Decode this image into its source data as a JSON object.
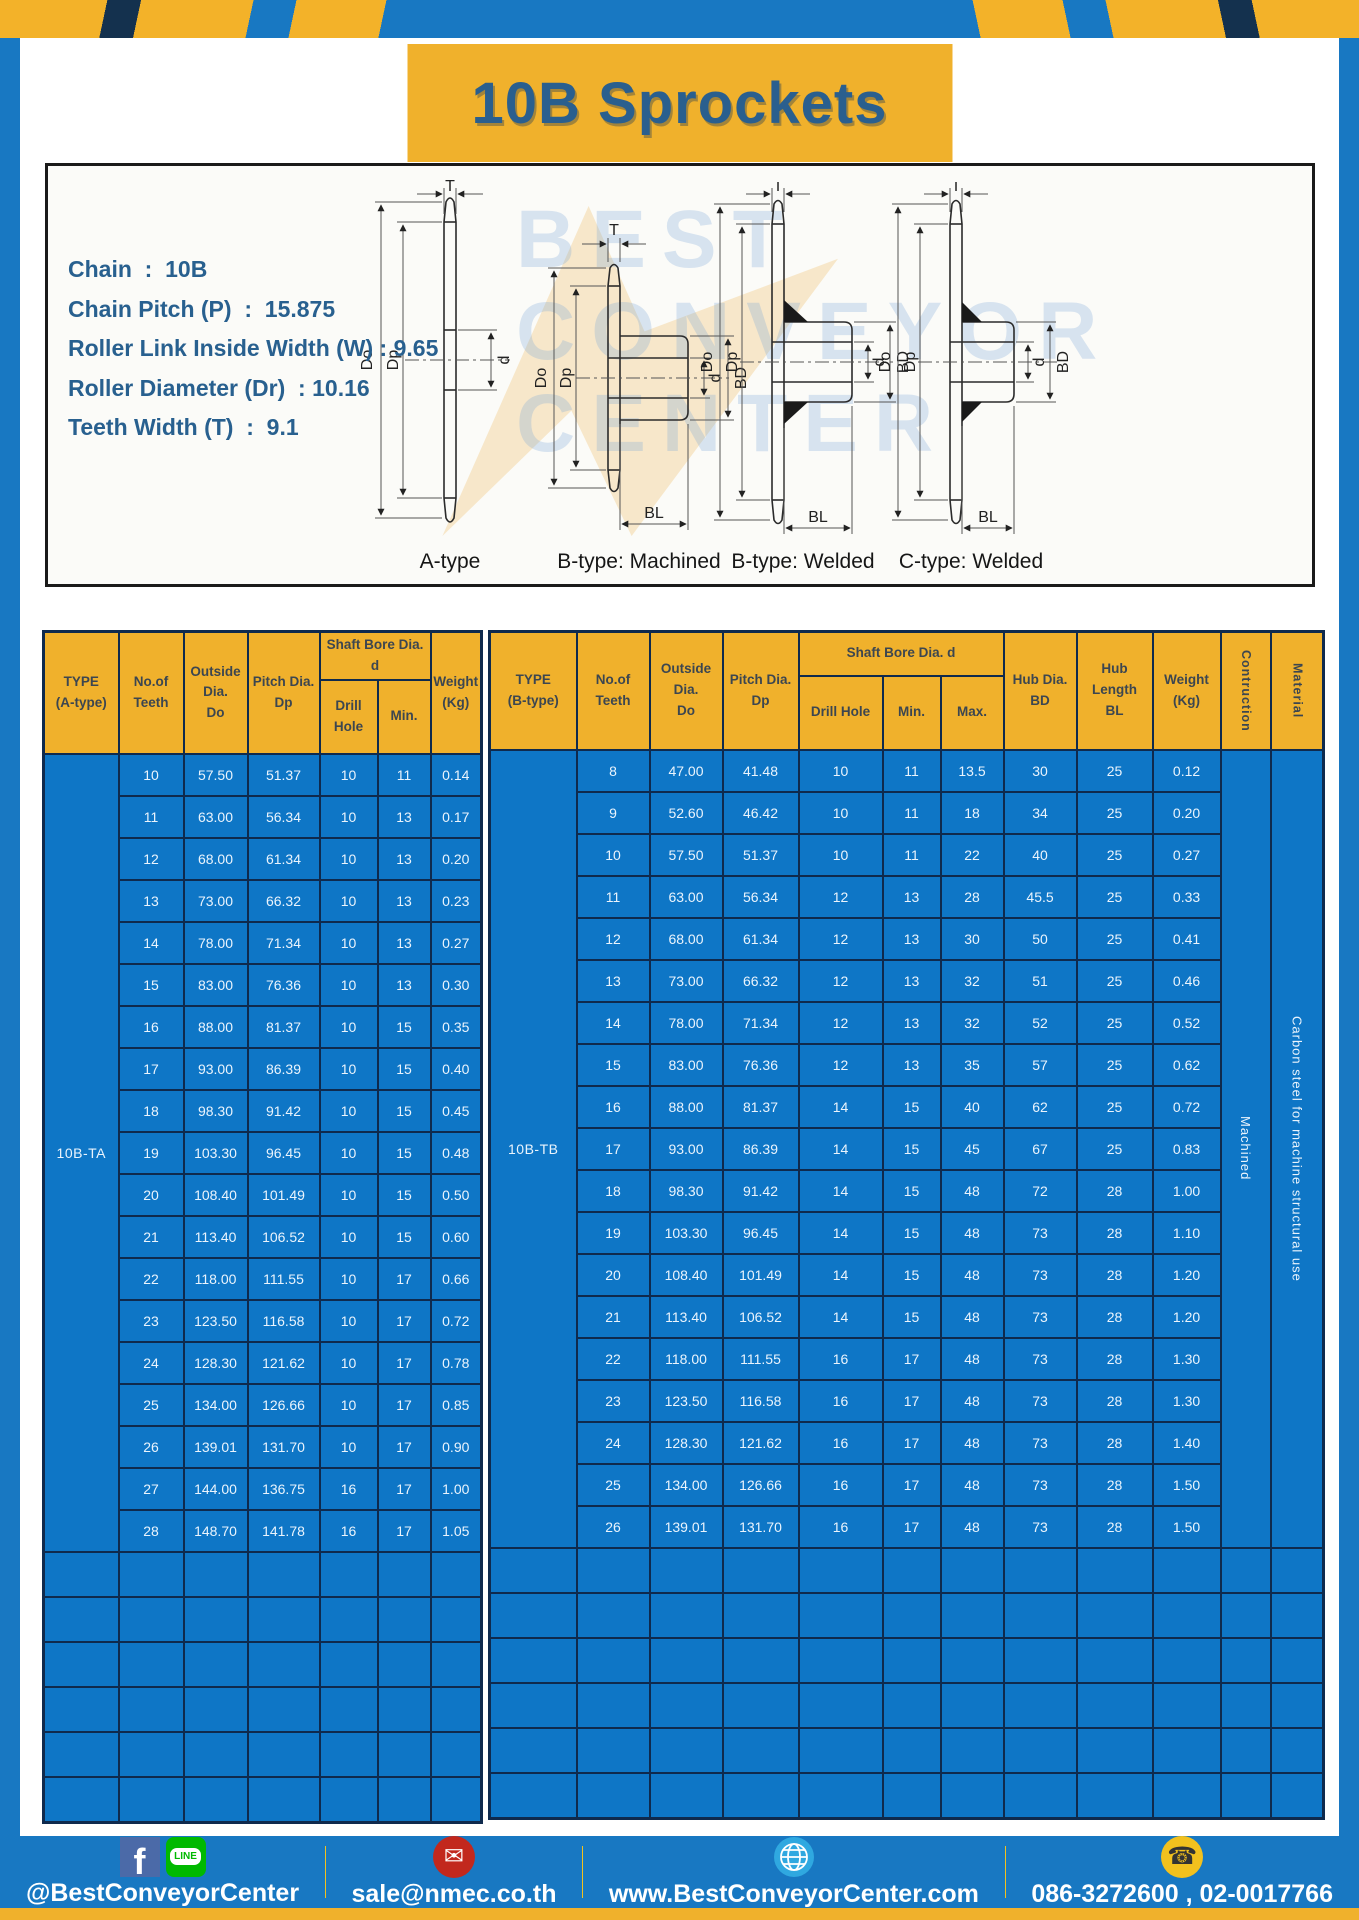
{
  "page": {
    "title": "10B Sprockets"
  },
  "specs": {
    "chain": "Chain  :  10B",
    "pitch": "Chain Pitch (P)  :  15.875",
    "roller_width": "Roller Link Inside Width (W) : 9.65",
    "roller_dia": "Roller Diameter (Dr)  : 10.16",
    "teeth_width": "Teeth Width (T)  :  9.1"
  },
  "diagrams": {
    "captions": {
      "a": "A-type",
      "b_machined": "B-type: Machined",
      "b_welded": "B-type: Welded",
      "c_welded": "C-type: Welded"
    },
    "dim_labels": {
      "t": "T",
      "do": "Do",
      "dp": "Dp",
      "d": "d",
      "bd": "BD",
      "bl": "BL"
    }
  },
  "watermark": {
    "l1": "BEST",
    "l2": "CONVEYOR",
    "l3": "CENTER"
  },
  "table_a": {
    "header": {
      "type": "TYPE\n(A-type)",
      "teeth": "No.of\nTeeth",
      "outside": "Outside\nDia.\nDo",
      "pitch": "Pitch Dia.\nDp",
      "shaft": "Shaft Bore Dia. d",
      "drill": "Drill Hole",
      "min": "Min.",
      "weight": "Weight\n(Kg)"
    },
    "type_label": "10B-TA",
    "rows": [
      [
        "10",
        "57.50",
        "51.37",
        "10",
        "11",
        "0.14"
      ],
      [
        "11",
        "63.00",
        "56.34",
        "10",
        "13",
        "0.17"
      ],
      [
        "12",
        "68.00",
        "61.34",
        "10",
        "13",
        "0.20"
      ],
      [
        "13",
        "73.00",
        "66.32",
        "10",
        "13",
        "0.23"
      ],
      [
        "14",
        "78.00",
        "71.34",
        "10",
        "13",
        "0.27"
      ],
      [
        "15",
        "83.00",
        "76.36",
        "10",
        "13",
        "0.30"
      ],
      [
        "16",
        "88.00",
        "81.37",
        "10",
        "15",
        "0.35"
      ],
      [
        "17",
        "93.00",
        "86.39",
        "10",
        "15",
        "0.40"
      ],
      [
        "18",
        "98.30",
        "91.42",
        "10",
        "15",
        "0.45"
      ],
      [
        "19",
        "103.30",
        "96.45",
        "10",
        "15",
        "0.48"
      ],
      [
        "20",
        "108.40",
        "101.49",
        "10",
        "15",
        "0.50"
      ],
      [
        "21",
        "113.40",
        "106.52",
        "10",
        "15",
        "0.60"
      ],
      [
        "22",
        "118.00",
        "111.55",
        "10",
        "17",
        "0.66"
      ],
      [
        "23",
        "123.50",
        "116.58",
        "10",
        "17",
        "0.72"
      ],
      [
        "24",
        "128.30",
        "121.62",
        "10",
        "17",
        "0.78"
      ],
      [
        "25",
        "134.00",
        "126.66",
        "10",
        "17",
        "0.85"
      ],
      [
        "26",
        "139.01",
        "131.70",
        "10",
        "17",
        "0.90"
      ],
      [
        "27",
        "144.00",
        "136.75",
        "16",
        "17",
        "1.00"
      ],
      [
        "28",
        "148.70",
        "141.78",
        "16",
        "17",
        "1.05"
      ]
    ],
    "empty_rows": 6
  },
  "table_b": {
    "header": {
      "type": "TYPE\n(B-type)",
      "teeth": "No.of\nTeeth",
      "outside": "Outside\nDia.\nDo",
      "pitch": "Pitch Dia.\nDp",
      "shaft": "Shaft Bore Dia. d",
      "drill": "Drill Hole",
      "min": "Min.",
      "max": "Max.",
      "hub_dia": "Hub Dia.\nBD",
      "hub_len": "Hub\nLength\nBL",
      "weight": "Weight\n(Kg)",
      "construction": "Contruction",
      "material": "Material"
    },
    "type_label": "10B-TB",
    "construction_value": "Machined",
    "material_value": "Carbon steel  for machine structural use",
    "rows": [
      [
        "8",
        "47.00",
        "41.48",
        "10",
        "11",
        "13.5",
        "30",
        "25",
        "0.12"
      ],
      [
        "9",
        "52.60",
        "46.42",
        "10",
        "11",
        "18",
        "34",
        "25",
        "0.20"
      ],
      [
        "10",
        "57.50",
        "51.37",
        "10",
        "11",
        "22",
        "40",
        "25",
        "0.27"
      ],
      [
        "11",
        "63.00",
        "56.34",
        "12",
        "13",
        "28",
        "45.5",
        "25",
        "0.33"
      ],
      [
        "12",
        "68.00",
        "61.34",
        "12",
        "13",
        "30",
        "50",
        "25",
        "0.41"
      ],
      [
        "13",
        "73.00",
        "66.32",
        "12",
        "13",
        "32",
        "51",
        "25",
        "0.46"
      ],
      [
        "14",
        "78.00",
        "71.34",
        "12",
        "13",
        "32",
        "52",
        "25",
        "0.52"
      ],
      [
        "15",
        "83.00",
        "76.36",
        "12",
        "13",
        "35",
        "57",
        "25",
        "0.62"
      ],
      [
        "16",
        "88.00",
        "81.37",
        "14",
        "15",
        "40",
        "62",
        "25",
        "0.72"
      ],
      [
        "17",
        "93.00",
        "86.39",
        "14",
        "15",
        "45",
        "67",
        "25",
        "0.83"
      ],
      [
        "18",
        "98.30",
        "91.42",
        "14",
        "15",
        "48",
        "72",
        "28",
        "1.00"
      ],
      [
        "19",
        "103.30",
        "96.45",
        "14",
        "15",
        "48",
        "73",
        "28",
        "1.10"
      ],
      [
        "20",
        "108.40",
        "101.49",
        "14",
        "15",
        "48",
        "73",
        "28",
        "1.20"
      ],
      [
        "21",
        "113.40",
        "106.52",
        "14",
        "15",
        "48",
        "73",
        "28",
        "1.20"
      ],
      [
        "22",
        "118.00",
        "111.55",
        "16",
        "17",
        "48",
        "73",
        "28",
        "1.30"
      ],
      [
        "23",
        "123.50",
        "116.58",
        "16",
        "17",
        "48",
        "73",
        "28",
        "1.30"
      ],
      [
        "24",
        "128.30",
        "121.62",
        "16",
        "17",
        "48",
        "73",
        "28",
        "1.40"
      ],
      [
        "25",
        "134.00",
        "126.66",
        "16",
        "17",
        "48",
        "73",
        "28",
        "1.50"
      ],
      [
        "26",
        "139.01",
        "131.70",
        "16",
        "17",
        "48",
        "73",
        "28",
        "1.50"
      ]
    ],
    "empty_rows": 6
  },
  "footer": {
    "social_label": "@BestConveyorCenter",
    "email": "sale@nmec.co.th",
    "website": "www.BestConveyorCenter.com",
    "phones": "086-3272600 , 02-0017766",
    "facebook_letter": "f",
    "line_text": "LINE",
    "mail_glyph": "✉",
    "phone_glyph": "☎"
  },
  "colors": {
    "frame_blue": "#1878c2",
    "header_yellow": "#f0b12c",
    "cell_blue": "#0e76c6",
    "grid_navy": "#0f2a4d",
    "title_blue": "#2a5f8e",
    "hazard_yellow": "#f3b229"
  }
}
